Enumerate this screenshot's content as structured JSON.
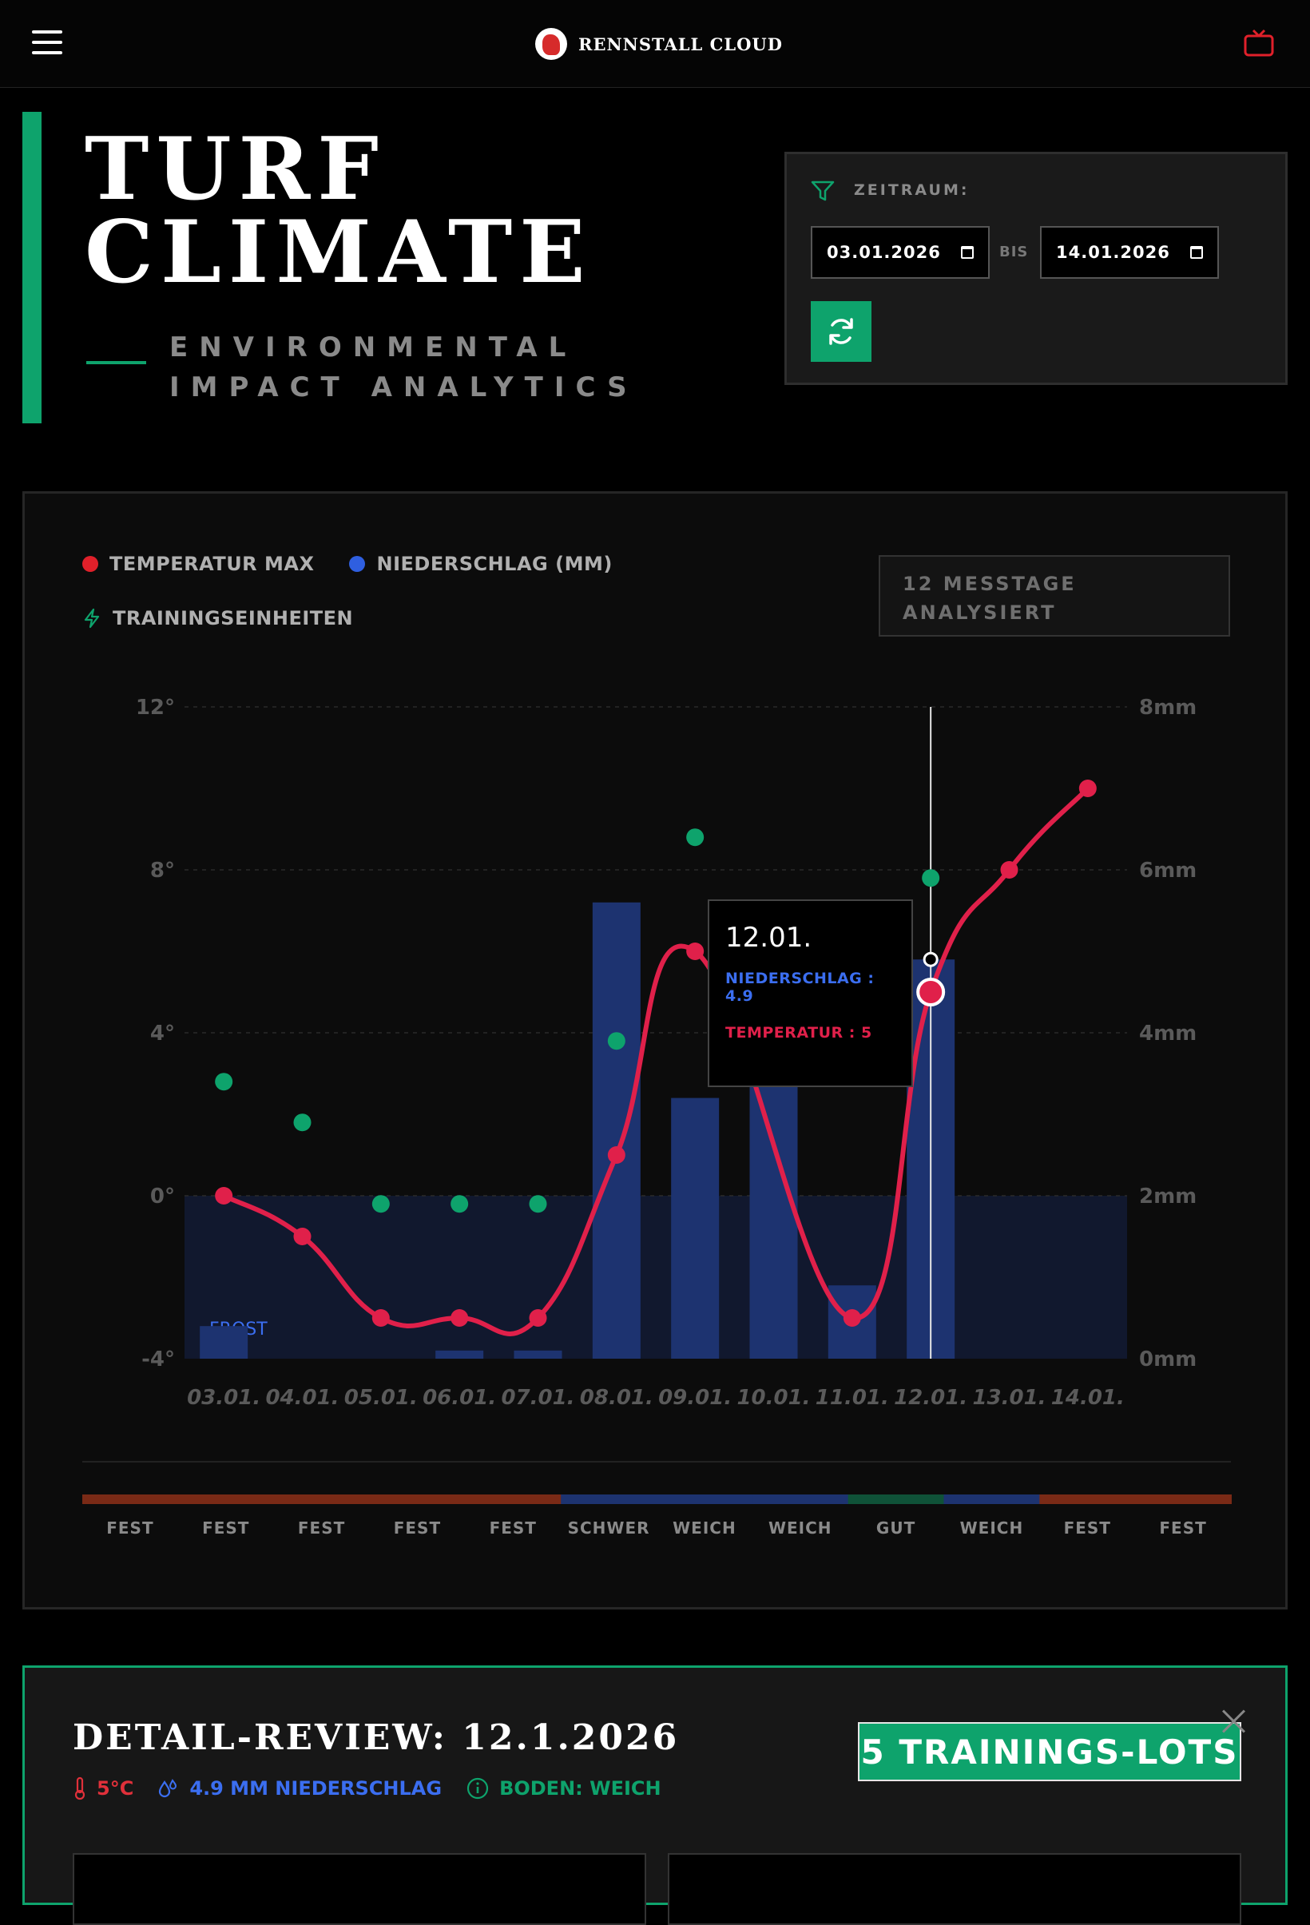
{
  "header": {
    "brand": "RENNSTALL CLOUD",
    "menu_icon": "hamburger-menu-icon",
    "tv_icon": "tv-icon"
  },
  "hero": {
    "title_line1": "TURF",
    "title_line2": "CLIMATE",
    "subtitle_line1": "ENVIRONMENTAL",
    "subtitle_line2": "IMPACT ANALYTICS"
  },
  "filter": {
    "label": "ZEITRAUM:",
    "from": "03.01.2026",
    "separator": "BIS",
    "to": "14.01.2026",
    "refresh_icon": "refresh-icon"
  },
  "legend": {
    "temp": "TEMPERATUR MAX",
    "rain": "NIEDERSCHLAG (MM)",
    "training": "TRAININGSEINHEITEN"
  },
  "days_badge": {
    "line1": "12 MESSTAGE",
    "line2": "ANALYSIERT"
  },
  "colors": {
    "accent": "#0ea36c",
    "temp": "#e0204a",
    "rain": "#2f5fe0",
    "bar": "#1d3370",
    "frost": "#11182e"
  },
  "chart_data": {
    "type": "line",
    "categories": [
      "03.01.",
      "04.01.",
      "05.01.",
      "06.01.",
      "07.01.",
      "08.01.",
      "09.01.",
      "10.01.",
      "11.01.",
      "12.01.",
      "13.01.",
      "14.01."
    ],
    "series": [
      {
        "name": "TEMPERATUR MAX",
        "axis": "left",
        "values": [
          0,
          -1,
          -3,
          -3,
          -3,
          1,
          6,
          null,
          -3,
          5,
          8,
          10
        ]
      },
      {
        "name": "NIEDERSCHLAG (MM)",
        "axis": "right",
        "type": "bar",
        "values": [
          0.4,
          0,
          0,
          0.1,
          0.1,
          5.6,
          3.2,
          3.7,
          0.9,
          4.9,
          0,
          0
        ]
      },
      {
        "name": "TRAININGSEINHEITEN",
        "axis": "left",
        "type": "scatter",
        "values": [
          2.8,
          1.8,
          -0.2,
          -0.2,
          -0.2,
          3.8,
          8.8,
          null,
          null,
          7.8,
          null,
          null
        ]
      }
    ],
    "y_left": {
      "ticks": [
        "12°",
        "8°",
        "4°",
        "0°",
        "-4°"
      ],
      "values": [
        12,
        8,
        4,
        0,
        -4
      ],
      "ylim": [
        -4,
        12
      ]
    },
    "y_right": {
      "ticks": [
        "8mm",
        "6mm",
        "4mm",
        "2mm",
        "0mm"
      ],
      "values": [
        8,
        6,
        4,
        2,
        0
      ],
      "ylim": [
        0,
        8
      ]
    },
    "frost_label": "FROST",
    "hover_index": 9
  },
  "tooltip": {
    "date": "12.01.",
    "rain": "NIEDERSCHLAG : 4.9",
    "temp": "TEMPERATUR : 5"
  },
  "soil": {
    "labels": [
      "FEST",
      "FEST",
      "FEST",
      "FEST",
      "FEST",
      "SCHWER",
      "WEICH",
      "WEICH",
      "GUT",
      "WEICH",
      "FEST",
      "FEST"
    ],
    "colors": [
      "#7a2a16",
      "#7a2a16",
      "#7a2a16",
      "#7a2a16",
      "#7a2a16",
      "#1d3370",
      "#1d3370",
      "#1d3370",
      "#0f5238",
      "#1d3370",
      "#7a2a16",
      "#7a2a16"
    ]
  },
  "detail": {
    "title": "DETAIL-REVIEW: 12.1.2026",
    "temp": "5°C",
    "rain": "4.9 MM NIEDERSCHLAG",
    "soil": "BODEN: WEICH",
    "lots": "5 TRAININGS-LOTS"
  }
}
